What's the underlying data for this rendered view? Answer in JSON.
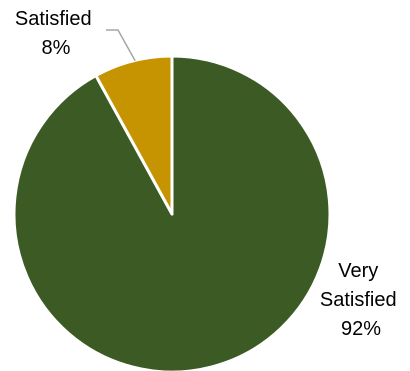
{
  "chart_data": {
    "type": "pie",
    "title": "",
    "slices": [
      {
        "label_lines": [
          "Very",
          "Satisfied"
        ],
        "percent_label": "92%",
        "value": 92,
        "color": "#3b5a24"
      },
      {
        "label_lines": [
          "Satisfied"
        ],
        "percent_label": "8%",
        "value": 8,
        "color": "#c59400"
      }
    ],
    "start_angle": "12 o'clock",
    "direction": "clockwise",
    "slice_border_color": "#ffffff",
    "leader_line_color": "#a6a6a6",
    "legend": "none"
  }
}
